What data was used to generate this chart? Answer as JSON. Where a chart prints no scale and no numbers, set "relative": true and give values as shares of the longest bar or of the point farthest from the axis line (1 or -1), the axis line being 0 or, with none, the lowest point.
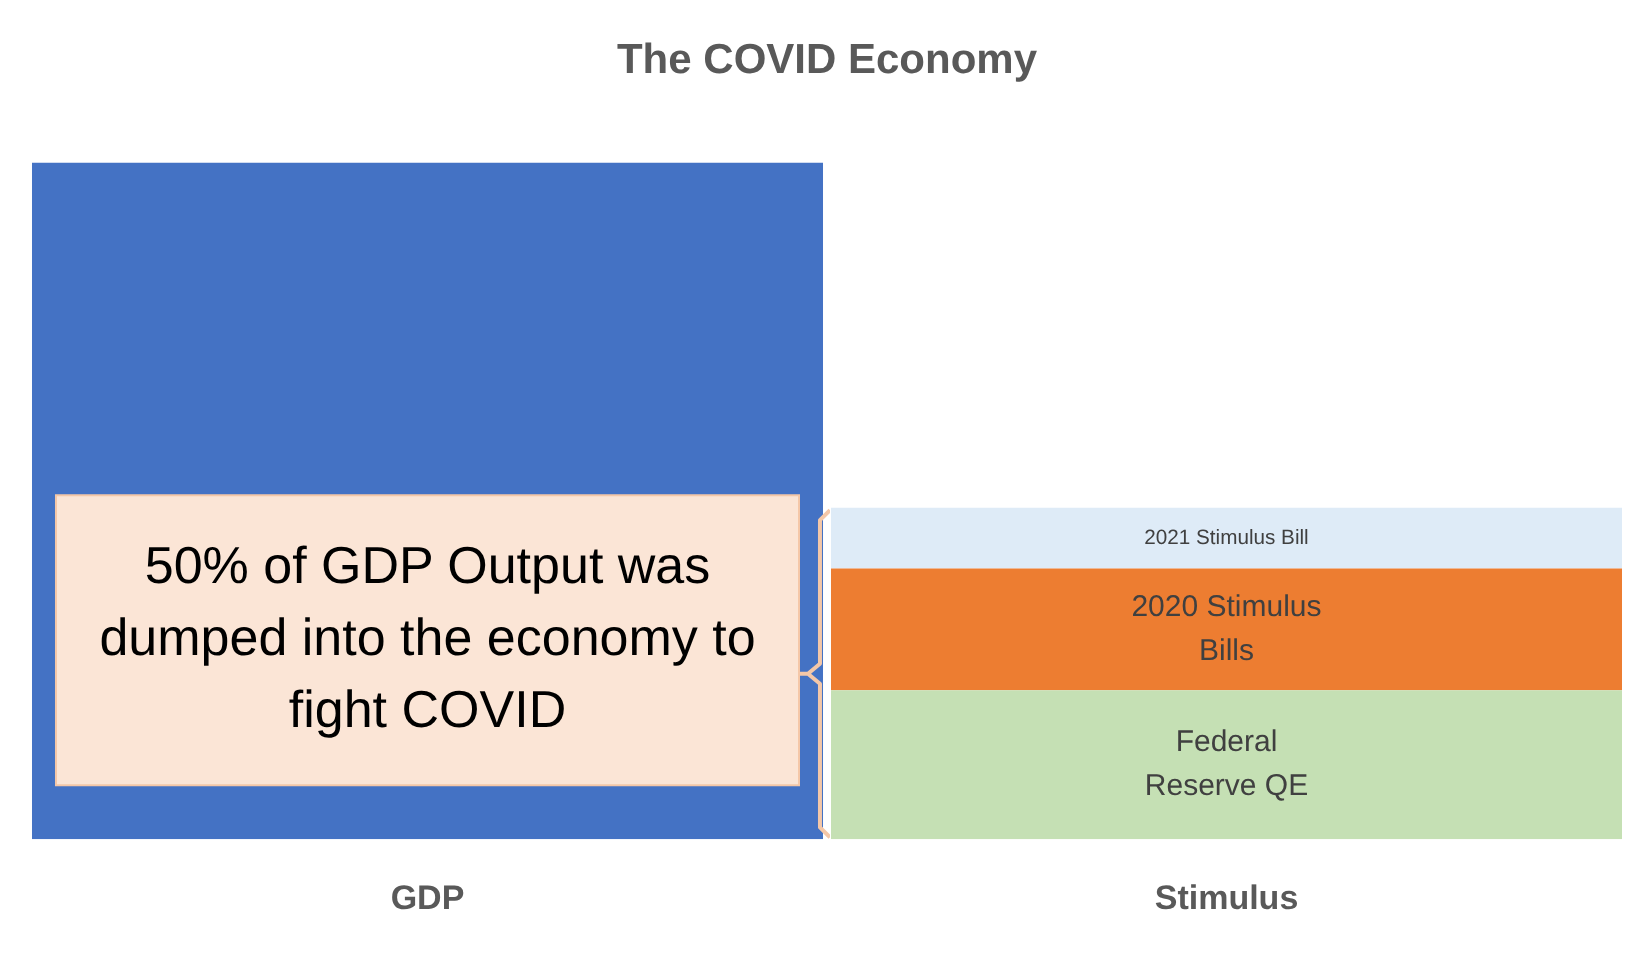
{
  "chart_data": {
    "type": "bar",
    "title": "The COVID Economy",
    "relative": true,
    "stacked": true,
    "categories": [
      "GDP",
      "Stimulus"
    ],
    "series": [
      {
        "color": "#4472c4",
        "values": [
          1,
          null
        ]
      },
      {
        "name": "Federal Reserve QE",
        "color": "#c5e0b4",
        "values": [
          null,
          0.22
        ]
      },
      {
        "name": "2020 Stimulus Bills",
        "color": "#ed7d31",
        "values": [
          null,
          0.18
        ]
      },
      {
        "name": "2021 Stimulus Bill",
        "color": "#deebf7",
        "values": [
          null,
          0.09
        ]
      }
    ],
    "annotations": [
      "50% of GDP Output was dumped into the economy to fight COVID"
    ],
    "grid": false,
    "legend": false
  }
}
